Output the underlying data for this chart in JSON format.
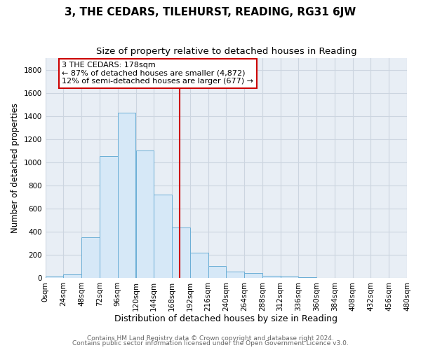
{
  "title": "3, THE CEDARS, TILEHURST, READING, RG31 6JW",
  "subtitle": "Size of property relative to detached houses in Reading",
  "xlabel": "Distribution of detached houses by size in Reading",
  "ylabel": "Number of detached properties",
  "bar_heights": [
    10,
    30,
    350,
    1050,
    1430,
    1100,
    720,
    435,
    220,
    105,
    55,
    40,
    20,
    10,
    5,
    2,
    1,
    0,
    0,
    0
  ],
  "bin_edges": [
    0,
    24,
    48,
    72,
    96,
    120,
    144,
    168,
    192,
    216,
    240,
    264,
    288,
    312,
    336,
    360,
    384,
    408,
    432,
    456,
    480
  ],
  "bar_color": "#d6e8f7",
  "bar_edge_color": "#6aaed6",
  "ref_line_x": 178,
  "ref_line_color": "#cc0000",
  "annotation_text": "3 THE CEDARS: 178sqm\n← 87% of detached houses are smaller (4,872)\n12% of semi-detached houses are larger (677) →",
  "annotation_box_facecolor": "#ffffff",
  "annotation_box_edgecolor": "#cc0000",
  "ylim": [
    0,
    1900
  ],
  "yticks": [
    0,
    200,
    400,
    600,
    800,
    1000,
    1200,
    1400,
    1600,
    1800
  ],
  "xtick_labels": [
    "0sqm",
    "24sqm",
    "48sqm",
    "72sqm",
    "96sqm",
    "120sqm",
    "144sqm",
    "168sqm",
    "192sqm",
    "216sqm",
    "240sqm",
    "264sqm",
    "288sqm",
    "312sqm",
    "336sqm",
    "360sqm",
    "384sqm",
    "408sqm",
    "432sqm",
    "456sqm",
    "480sqm"
  ],
  "grid_color": "#ccd5e0",
  "figure_bg": "#ffffff",
  "plot_bg": "#e8eef5",
  "title_fontsize": 11,
  "subtitle_fontsize": 9.5,
  "xlabel_fontsize": 9,
  "ylabel_fontsize": 8.5,
  "tick_fontsize": 7.5,
  "footer_fontsize": 6.5,
  "annotation_fontsize": 8,
  "footer_line1": "Contains HM Land Registry data © Crown copyright and database right 2024.",
  "footer_line2": "Contains public sector information licensed under the Open Government Licence v3.0."
}
